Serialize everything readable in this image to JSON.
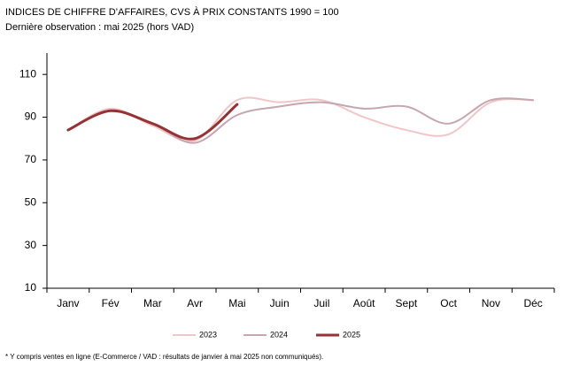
{
  "chart_data": {
    "type": "line",
    "title": "INDICES DE CHIFFRE D’AFFAIRES, CVS À PRIX CONSTANTS 1990 = 100",
    "subtitle": "Dernière observation : mai 2025 (hors VAD)",
    "footnote": "* Y compris ventes en ligne (E-Commerce / VAD : résultats de janvier à mai 2025 non communiqués).",
    "categories": [
      "Janv",
      "Fév",
      "Mar",
      "Avr",
      "Mai",
      "Juin",
      "Juil",
      "Août",
      "Sept",
      "Oct",
      "Nov",
      "Déc"
    ],
    "series": [
      {
        "name": "2023",
        "color": "#f0c6c6",
        "values": [
          84,
          94,
          86,
          79,
          98,
          97,
          98,
          90,
          84,
          82,
          97,
          98
        ]
      },
      {
        "name": "2024",
        "color": "#c6a6b0",
        "values": [
          84,
          93,
          87,
          78,
          91,
          95,
          97,
          94,
          95,
          87,
          98,
          98
        ]
      },
      {
        "name": "2025",
        "color": "#963234",
        "values": [
          84,
          93,
          87,
          80,
          96,
          null,
          null,
          null,
          null,
          null,
          null,
          null
        ]
      }
    ],
    "ylim": [
      10,
      120
    ],
    "yticks": [
      10,
      30,
      50,
      70,
      90,
      110
    ],
    "legend": "bottom"
  }
}
